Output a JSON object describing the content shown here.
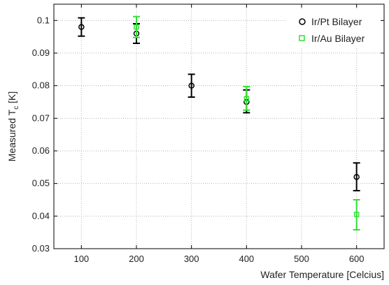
{
  "chart_data": {
    "type": "scatter",
    "xlabel": "Wafer Temperature [Celcius]",
    "ylabel": {
      "main": "Measured T",
      "sub": "c",
      "unit": " [K]"
    },
    "xlim": [
      50,
      650
    ],
    "ylim": [
      0.03,
      0.105
    ],
    "xticks": [
      100,
      200,
      300,
      400,
      500,
      600
    ],
    "xtick_labels": [
      "100",
      "200",
      "300",
      "400",
      "500",
      "600"
    ],
    "yticks": [
      0.03,
      0.04,
      0.05,
      0.06,
      0.07,
      0.08,
      0.09,
      0.1
    ],
    "ytick_labels": [
      "0.03",
      "0.04",
      "0.05",
      "0.06",
      "0.07",
      "0.08",
      "0.09",
      "0.1"
    ],
    "grid": true,
    "legend_position": "top-right",
    "series": [
      {
        "name": "Ir/Pt Bilayer",
        "marker": "circle",
        "color": "#000000",
        "points": [
          {
            "x": 100,
            "y": 0.098,
            "lo": 0.0952,
            "hi": 0.1008
          },
          {
            "x": 200,
            "y": 0.096,
            "lo": 0.093,
            "hi": 0.099
          },
          {
            "x": 300,
            "y": 0.08,
            "lo": 0.0765,
            "hi": 0.0835
          },
          {
            "x": 400,
            "y": 0.075,
            "lo": 0.0717,
            "hi": 0.0787
          },
          {
            "x": 600,
            "y": 0.052,
            "lo": 0.0478,
            "hi": 0.0563
          }
        ]
      },
      {
        "name": "Ir/Au Bilayer",
        "marker": "square",
        "color": "#33dd33",
        "points": [
          {
            "x": 200,
            "y": 0.098,
            "lo": 0.0948,
            "hi": 0.1012
          },
          {
            "x": 400,
            "y": 0.076,
            "lo": 0.0725,
            "hi": 0.0797
          },
          {
            "x": 600,
            "y": 0.0405,
            "lo": 0.0358,
            "hi": 0.045
          }
        ]
      }
    ]
  }
}
